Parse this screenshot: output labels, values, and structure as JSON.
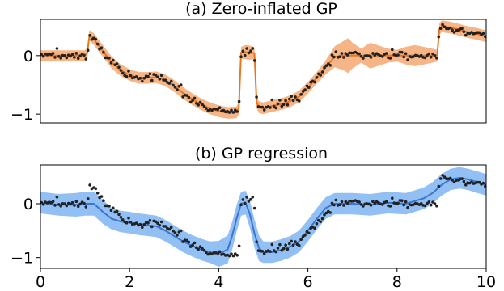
{
  "chart_data": [
    {
      "type": "line",
      "title": "(a) Zero-inflated GP",
      "xlabel": "",
      "ylabel": "",
      "xlim": [
        0,
        10
      ],
      "ylim": [
        -1.15,
        0.62
      ],
      "yticks": [
        0,
        -1
      ],
      "ytick_labels": [
        "0",
        "−1"
      ],
      "xticks": [],
      "xtick_labels": [],
      "grid": false,
      "legend": "none",
      "colors": {
        "mean": "#e8761e",
        "band": "#f5a872",
        "points": "#222222"
      },
      "series": [
        {
          "kind": "mean",
          "x": [
            0.0,
            0.5,
            1.0,
            1.05,
            1.1,
            1.2,
            1.4,
            1.6,
            1.8,
            2.0,
            2.2,
            2.4,
            2.6,
            2.8,
            3.0,
            3.2,
            3.4,
            3.6,
            3.8,
            4.0,
            4.2,
            4.4,
            4.45,
            4.5,
            4.6,
            4.7,
            4.8,
            4.85,
            4.9,
            5.0,
            5.2,
            5.4,
            5.6,
            5.8,
            6.0,
            6.2,
            6.4,
            6.6,
            6.8,
            6.9,
            7.0,
            7.2,
            7.4,
            7.6,
            7.8,
            8.0,
            8.2,
            8.4,
            8.6,
            8.8,
            8.9,
            8.95,
            9.0,
            9.2,
            9.4,
            9.6,
            9.8,
            10.0
          ],
          "y": [
            0.0,
            0.0,
            0.0,
            0.05,
            0.35,
            0.28,
            0.08,
            -0.12,
            -0.25,
            -0.33,
            -0.38,
            -0.38,
            -0.37,
            -0.42,
            -0.52,
            -0.64,
            -0.74,
            -0.83,
            -0.9,
            -0.95,
            -0.98,
            -0.97,
            -0.9,
            0.05,
            0.06,
            0.05,
            0.04,
            -0.8,
            -0.88,
            -0.9,
            -0.86,
            -0.83,
            -0.78,
            -0.7,
            -0.55,
            -0.38,
            -0.2,
            -0.02,
            0.0,
            0.0,
            0.0,
            0.0,
            0.0,
            0.0,
            0.0,
            0.0,
            0.0,
            0.0,
            0.0,
            0.0,
            0.0,
            0.45,
            0.5,
            0.48,
            0.44,
            0.4,
            0.37,
            0.33
          ]
        },
        {
          "kind": "band",
          "x": [
            0.0,
            0.5,
            1.0,
            1.05,
            1.1,
            1.2,
            1.4,
            1.6,
            1.8,
            2.0,
            2.2,
            2.4,
            2.6,
            2.8,
            3.0,
            3.2,
            3.4,
            3.6,
            3.8,
            4.0,
            4.2,
            4.4,
            4.45,
            4.5,
            4.6,
            4.7,
            4.8,
            4.85,
            4.9,
            5.0,
            5.2,
            5.4,
            5.6,
            5.8,
            6.0,
            6.2,
            6.4,
            6.6,
            6.8,
            6.9,
            7.0,
            7.2,
            7.4,
            7.6,
            7.8,
            8.0,
            8.2,
            8.4,
            8.6,
            8.8,
            8.9,
            8.95,
            9.0,
            9.2,
            9.4,
            9.6,
            9.8,
            10.0
          ],
          "half_width": [
            0.09,
            0.09,
            0.09,
            0.09,
            0.09,
            0.1,
            0.1,
            0.1,
            0.1,
            0.1,
            0.1,
            0.1,
            0.1,
            0.1,
            0.1,
            0.1,
            0.1,
            0.1,
            0.1,
            0.1,
            0.1,
            0.1,
            0.1,
            0.1,
            0.12,
            0.12,
            0.1,
            0.1,
            0.1,
            0.1,
            0.1,
            0.1,
            0.1,
            0.1,
            0.1,
            0.1,
            0.12,
            0.18,
            0.25,
            0.3,
            0.22,
            0.12,
            0.22,
            0.17,
            0.12,
            0.1,
            0.15,
            0.18,
            0.15,
            0.12,
            0.1,
            0.1,
            0.1,
            0.1,
            0.1,
            0.1,
            0.1,
            0.1
          ]
        }
      ]
    },
    {
      "type": "line",
      "title": "(b) GP regression",
      "xlabel": "",
      "ylabel": "",
      "xlim": [
        0,
        10
      ],
      "ylim": [
        -1.2,
        0.72
      ],
      "yticks": [
        0,
        -1
      ],
      "ytick_labels": [
        "0",
        "−1"
      ],
      "xticks": [
        0,
        2,
        4,
        6,
        8,
        10
      ],
      "xtick_labels": [
        "0",
        "2",
        "4",
        "6",
        "8",
        "10"
      ],
      "grid": false,
      "legend": "none",
      "colors": {
        "mean": "#3a77d0",
        "band": "#7fb4f2",
        "points": "#222222"
      },
      "series": [
        {
          "kind": "mean",
          "x": [
            0.0,
            0.4,
            0.8,
            1.0,
            1.2,
            1.4,
            1.6,
            1.8,
            2.0,
            2.2,
            2.4,
            2.6,
            2.8,
            3.0,
            3.2,
            3.4,
            3.6,
            3.8,
            4.0,
            4.2,
            4.3,
            4.4,
            4.5,
            4.6,
            4.7,
            4.8,
            4.9,
            5.0,
            5.2,
            5.4,
            5.6,
            5.8,
            6.0,
            6.2,
            6.4,
            6.6,
            6.8,
            7.0,
            7.4,
            7.8,
            8.2,
            8.6,
            8.8,
            9.0,
            9.2,
            9.4,
            9.6,
            9.8,
            10.0
          ],
          "y": [
            0.02,
            -0.02,
            -0.02,
            0.0,
            0.0,
            -0.15,
            -0.28,
            -0.33,
            -0.35,
            -0.38,
            -0.4,
            -0.42,
            -0.5,
            -0.6,
            -0.7,
            -0.78,
            -0.85,
            -0.9,
            -0.93,
            -0.85,
            -0.6,
            -0.28,
            0.0,
            0.02,
            -0.2,
            -0.55,
            -0.82,
            -0.9,
            -0.9,
            -0.86,
            -0.8,
            -0.7,
            -0.5,
            -0.28,
            -0.08,
            0.0,
            0.0,
            0.0,
            -0.02,
            0.02,
            0.0,
            0.1,
            0.2,
            0.35,
            0.45,
            0.48,
            0.45,
            0.4,
            0.35
          ]
        },
        {
          "kind": "band",
          "x": [
            0.0,
            0.4,
            0.8,
            1.0,
            1.2,
            1.4,
            1.6,
            1.8,
            2.0,
            2.2,
            2.4,
            2.6,
            2.8,
            3.0,
            3.2,
            3.4,
            3.6,
            3.8,
            4.0,
            4.2,
            4.3,
            4.4,
            4.5,
            4.6,
            4.7,
            4.8,
            4.9,
            5.0,
            5.2,
            5.4,
            5.6,
            5.8,
            6.0,
            6.2,
            6.4,
            6.6,
            6.8,
            7.0,
            7.4,
            7.8,
            8.2,
            8.6,
            8.8,
            9.0,
            9.2,
            9.4,
            9.6,
            9.8,
            10.0
          ],
          "half_width": [
            0.2,
            0.2,
            0.22,
            0.22,
            0.22,
            0.22,
            0.2,
            0.2,
            0.2,
            0.2,
            0.2,
            0.2,
            0.2,
            0.2,
            0.2,
            0.2,
            0.2,
            0.2,
            0.24,
            0.26,
            0.26,
            0.25,
            0.22,
            0.22,
            0.25,
            0.26,
            0.24,
            0.2,
            0.2,
            0.2,
            0.2,
            0.2,
            0.2,
            0.2,
            0.2,
            0.2,
            0.2,
            0.2,
            0.2,
            0.2,
            0.2,
            0.2,
            0.2,
            0.2,
            0.2,
            0.2,
            0.2,
            0.2,
            0.2
          ]
        }
      ]
    }
  ]
}
